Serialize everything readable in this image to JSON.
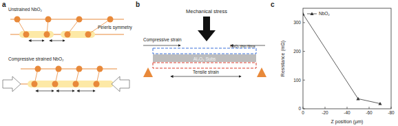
{
  "panel_labels": [
    "a",
    "b",
    "c"
  ],
  "panel_a": {
    "top_label": "Unstrained NbO₂",
    "annotation": "Peierls symmetry",
    "bottom_label": "Compressive strained NbO₂"
  },
  "panel_b": {
    "title": "Mechanical stress",
    "compressive": "Compressive strain",
    "film": "NbO₂ thin films",
    "substrate": "Al₂O₃ Subs",
    "tensile": "Tensile strain"
  },
  "chart_data": {
    "type": "line",
    "x_label": "Z position (μm)",
    "y_label": "Resistance (mΩ)",
    "x": [
      0,
      -50,
      -70
    ],
    "series": [
      {
        "name": "NbO₂",
        "color": "#333333",
        "marker": "triangle",
        "values": [
          330,
          35,
          18
        ]
      }
    ],
    "xlim": [
      0,
      -80
    ],
    "xticks": [
      0,
      -20,
      -40,
      -60,
      -80
    ],
    "ylim": [
      0,
      350
    ],
    "yticks": [
      0,
      100,
      200,
      300
    ],
    "legend": "upper left"
  }
}
